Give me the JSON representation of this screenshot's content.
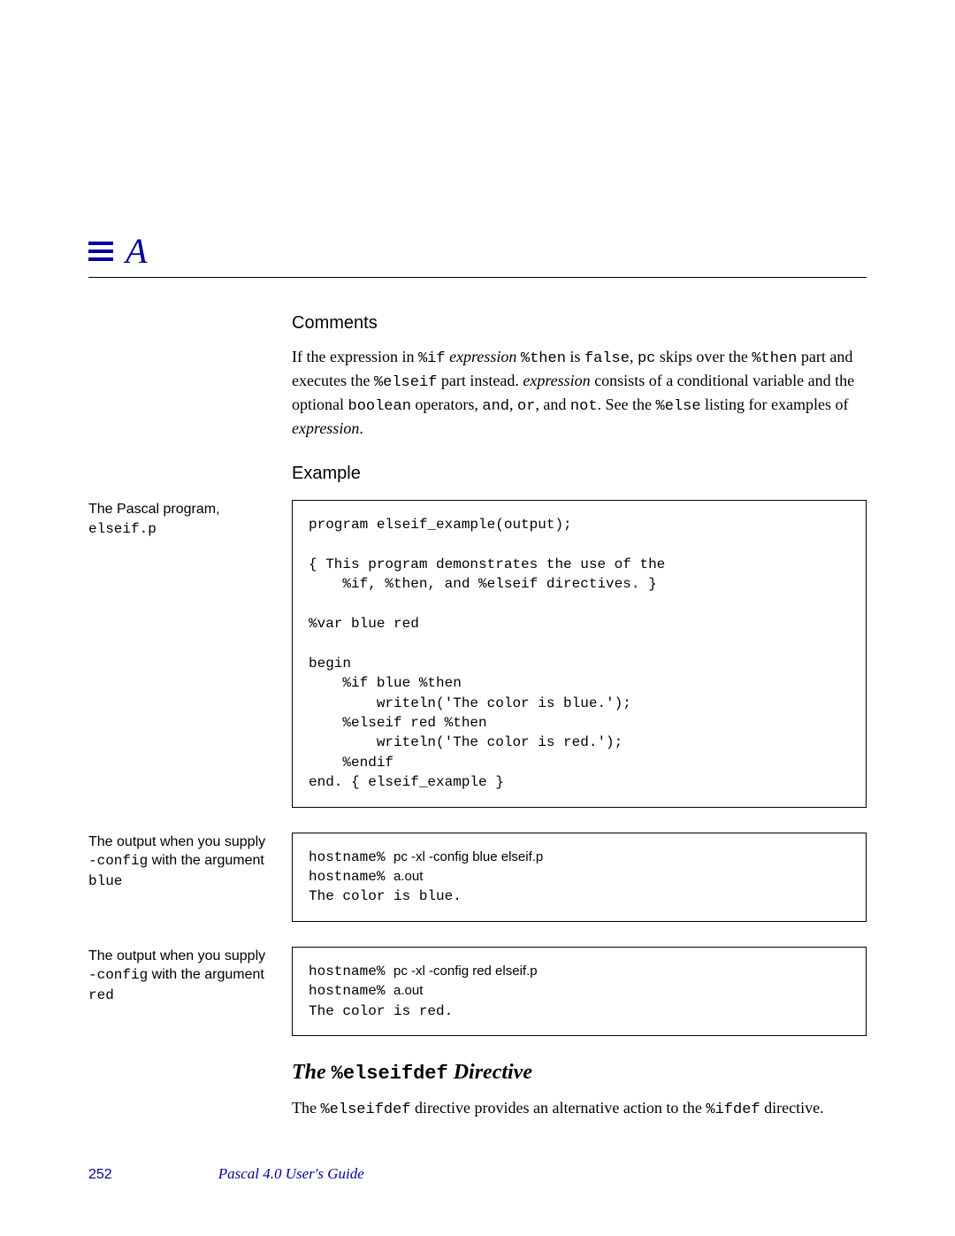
{
  "header": {
    "appendix_letter": "A"
  },
  "comments": {
    "heading": "Comments",
    "p1_a": "If the expression in ",
    "p1_b": "%if",
    "p1_c": " expression ",
    "p1_d": "%then",
    "p1_e": " is ",
    "p1_f": "false",
    "p1_g": ", ",
    "p1_h": "pc",
    "p1_i": " skips over the ",
    "p1_j": "%then",
    "p1_k": " part and executes the ",
    "p1_l": "%elseif",
    "p1_m": " part instead. ",
    "p1_n": "expression",
    "p1_o": " consists of a conditional variable and the optional ",
    "p1_p": "boolean",
    "p1_q": " operators, ",
    "p1_r": "and",
    "p1_s": ", ",
    "p1_t": "or",
    "p1_u": ", and ",
    "p1_v": "not",
    "p1_w": ". See the ",
    "p1_x": "%else",
    "p1_y": " listing for examples of ",
    "p1_z": "expression",
    "p1_end": "."
  },
  "example": {
    "heading": "Example",
    "label1_a": "The Pascal program, ",
    "label1_b": "elseif.p",
    "code1": "program elseif_example(output);\n\n{ This program demonstrates the use of the\n    %if, %then, and %elseif directives. }\n\n%var blue red\n\nbegin\n    %if blue %then\n        writeln('The color is blue.');\n    %elseif red %then\n        writeln('The color is red.');\n    %endif\nend. { elseif_example }",
    "label2_a": "The output when you supply ",
    "label2_b": "-config",
    "label2_c": " with the argument ",
    "label2_d": "blue",
    "out2_host1": "hostname% ",
    "out2_cmd1": "pc -xl -config blue elseif.p",
    "out2_host2": "hostname% ",
    "out2_cmd2": "a.out",
    "out2_line3": "The color is blue.",
    "label3_a": "The output when you supply ",
    "label3_b": "-config",
    "label3_c": " with the argument ",
    "label3_d": "red",
    "out3_host1": "hostname% ",
    "out3_cmd1": "pc -xl -config red elseif.p",
    "out3_host2": "hostname% ",
    "out3_cmd2": "a.out",
    "out3_line3": "The color is red."
  },
  "section": {
    "h_a": "The ",
    "h_b": "%elseifdef",
    "h_c": " Directive",
    "p_a": "The ",
    "p_b": "%elseifdef",
    "p_c": " directive provides an alternative action to the ",
    "p_d": "%ifdef",
    "p_e": " directive."
  },
  "footer": {
    "page": "252",
    "title": "Pascal 4.0 User's Guide"
  }
}
